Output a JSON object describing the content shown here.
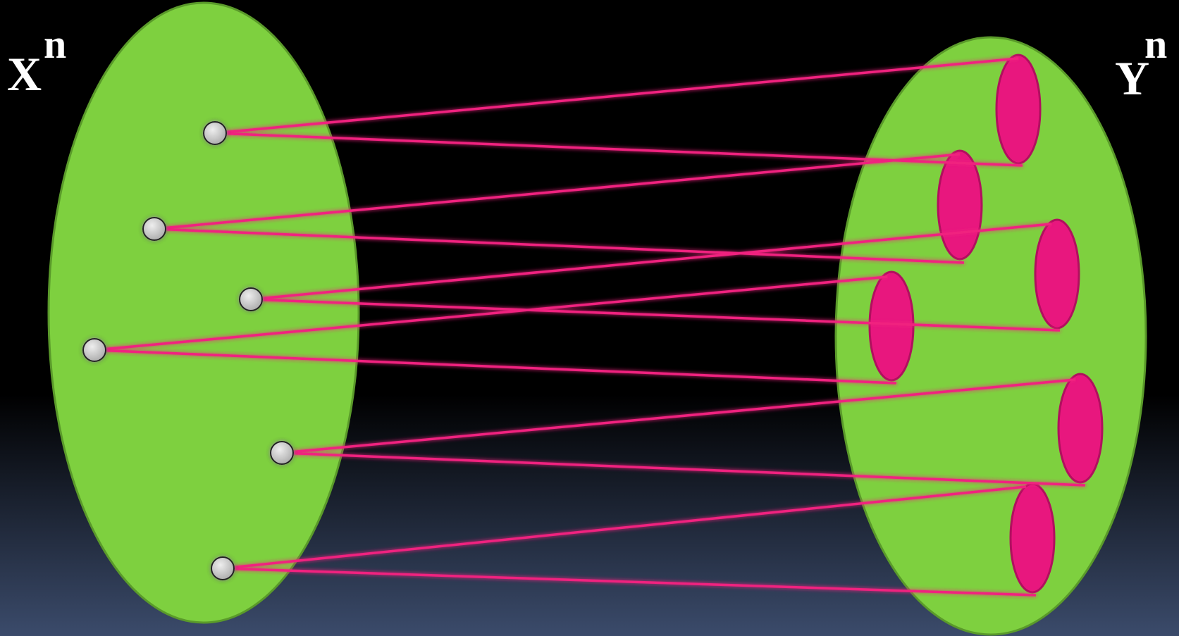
{
  "left_set": {
    "label": "X",
    "superscript": "n"
  },
  "right_set": {
    "label": "Y",
    "superscript": "n"
  }
}
